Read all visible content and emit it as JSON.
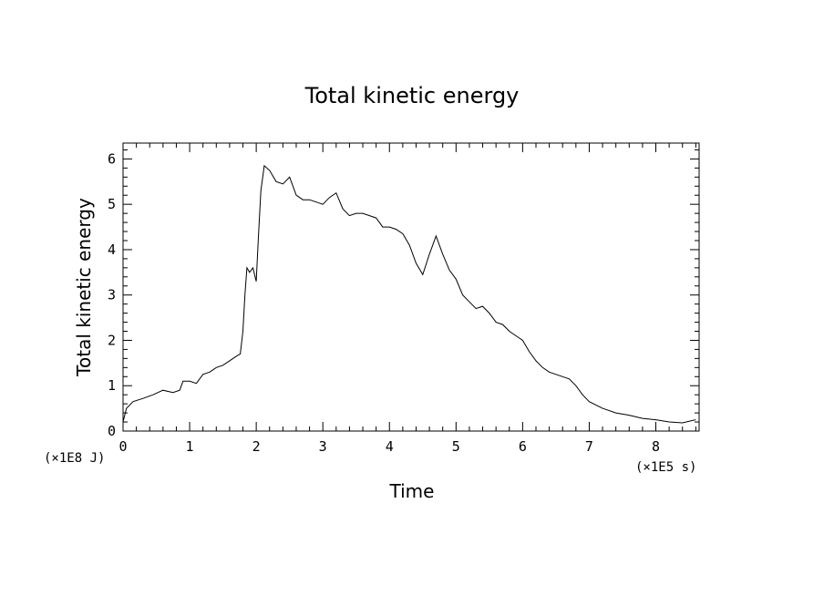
{
  "chart_data": {
    "type": "line",
    "title": "Total kinetic energy",
    "xlabel": "Time",
    "ylabel": "Total kinetic energy",
    "x_unit_label": "(×1E5 s)",
    "y_unit_label": "(×1E8 J)",
    "xlim": [
      0,
      8.65
    ],
    "ylim": [
      0,
      6.35
    ],
    "xticks": [
      0,
      1,
      2,
      3,
      4,
      5,
      6,
      7,
      8
    ],
    "yticks": [
      0,
      1,
      2,
      3,
      4,
      5,
      6
    ],
    "grid": false,
    "line_color": "#000000",
    "series": [
      {
        "x": [
          0.0,
          0.05,
          0.15,
          0.3,
          0.45,
          0.6,
          0.75,
          0.85,
          0.9,
          1.0,
          1.1,
          1.2,
          1.3,
          1.4,
          1.5,
          1.6,
          1.7,
          1.76,
          1.8,
          1.83,
          1.86,
          1.9,
          1.95,
          2.0,
          2.03,
          2.07,
          2.12,
          2.2,
          2.3,
          2.4,
          2.5,
          2.6,
          2.7,
          2.8,
          2.9,
          3.0,
          3.1,
          3.2,
          3.3,
          3.4,
          3.5,
          3.6,
          3.7,
          3.8,
          3.9,
          4.0,
          4.1,
          4.2,
          4.3,
          4.4,
          4.5,
          4.6,
          4.7,
          4.8,
          4.9,
          5.0,
          5.1,
          5.2,
          5.3,
          5.4,
          5.5,
          5.6,
          5.7,
          5.8,
          5.9,
          6.0,
          6.1,
          6.2,
          6.3,
          6.4,
          6.5,
          6.6,
          6.7,
          6.8,
          6.9,
          7.0,
          7.2,
          7.4,
          7.6,
          7.8,
          8.0,
          8.2,
          8.4,
          8.6
        ],
        "y": [
          0.2,
          0.5,
          0.65,
          0.72,
          0.8,
          0.9,
          0.85,
          0.9,
          1.1,
          1.1,
          1.05,
          1.25,
          1.3,
          1.4,
          1.45,
          1.55,
          1.65,
          1.7,
          2.2,
          3.0,
          3.6,
          3.5,
          3.6,
          3.3,
          4.2,
          5.3,
          5.85,
          5.75,
          5.5,
          5.45,
          5.6,
          5.2,
          5.1,
          5.1,
          5.05,
          5.0,
          5.15,
          5.25,
          4.9,
          4.75,
          4.8,
          4.8,
          4.75,
          4.7,
          4.5,
          4.5,
          4.45,
          4.35,
          4.1,
          3.7,
          3.45,
          3.9,
          4.3,
          3.9,
          3.55,
          3.35,
          3.0,
          2.85,
          2.7,
          2.75,
          2.6,
          2.4,
          2.35,
          2.2,
          2.1,
          2.0,
          1.75,
          1.55,
          1.4,
          1.3,
          1.25,
          1.2,
          1.15,
          1.0,
          0.8,
          0.65,
          0.5,
          0.4,
          0.35,
          0.28,
          0.25,
          0.2,
          0.18,
          0.25
        ]
      }
    ]
  }
}
